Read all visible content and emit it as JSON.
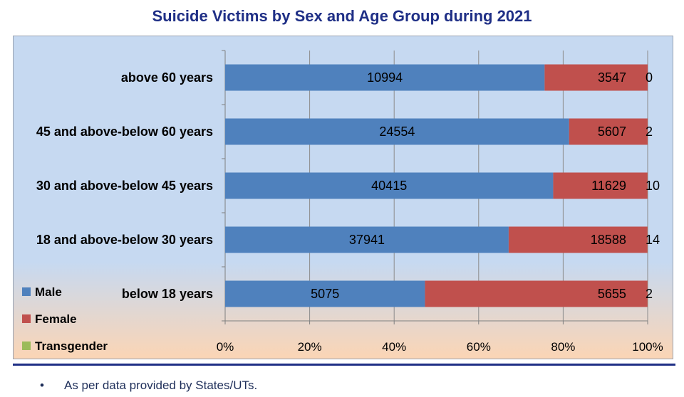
{
  "chart_data": {
    "type": "bar",
    "orientation": "horizontal",
    "stacked": "percent",
    "title": "Suicide Victims by Sex and Age Group during 2021",
    "categories": [
      "above 60 years",
      "45 and above-below 60 years",
      "30 and above-below 45 years",
      "18 and above-below 30 years",
      "below 18 years"
    ],
    "series": [
      {
        "name": "Male",
        "color": "#4f81bd",
        "values": [
          10994,
          24554,
          40415,
          37941,
          5075
        ]
      },
      {
        "name": "Female",
        "color": "#c0504d",
        "values": [
          3547,
          5607,
          11629,
          18588,
          5655
        ]
      },
      {
        "name": "Transgender",
        "color": "#9bbb59",
        "values": [
          0,
          2,
          10,
          14,
          2
        ]
      }
    ],
    "x_ticks": [
      "0%",
      "20%",
      "40%",
      "60%",
      "80%",
      "100%"
    ],
    "xlim": [
      0,
      100
    ],
    "grid": true,
    "legend_position": "bottom-left"
  },
  "footnote": {
    "bullet": "•",
    "text": "As per data provided by States/UTs."
  }
}
